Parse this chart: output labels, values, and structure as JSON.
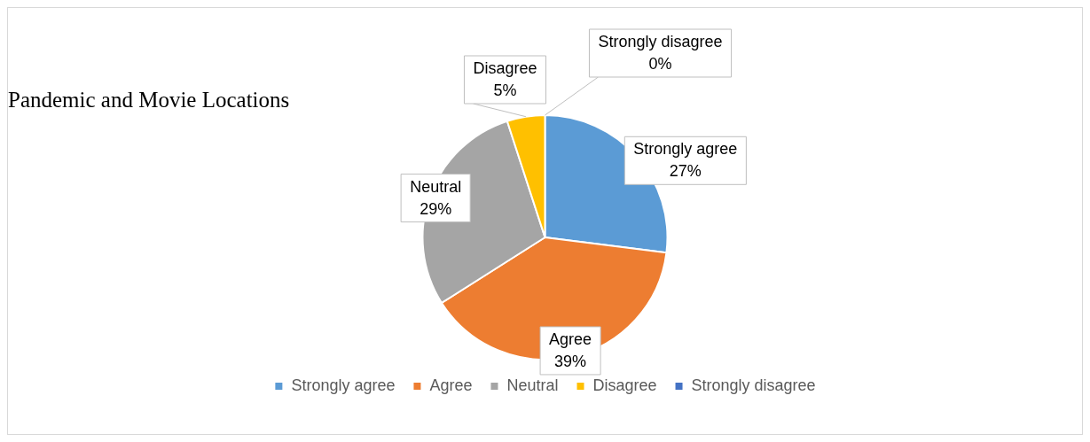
{
  "chart_data": {
    "type": "pie",
    "title": "Pandemic and Movie Locations",
    "categories": [
      "Strongly agree",
      "Agree",
      "Neutral",
      "Disagree",
      "Strongly disagree"
    ],
    "values": [
      27,
      39,
      29,
      5,
      0
    ],
    "colors": [
      "#5b9bd5",
      "#ed7d31",
      "#a5a5a5",
      "#ffc000",
      "#4472c4"
    ],
    "value_labels": [
      "27%",
      "39%",
      "29%",
      "5%",
      "0%"
    ],
    "legend": "bottom"
  }
}
